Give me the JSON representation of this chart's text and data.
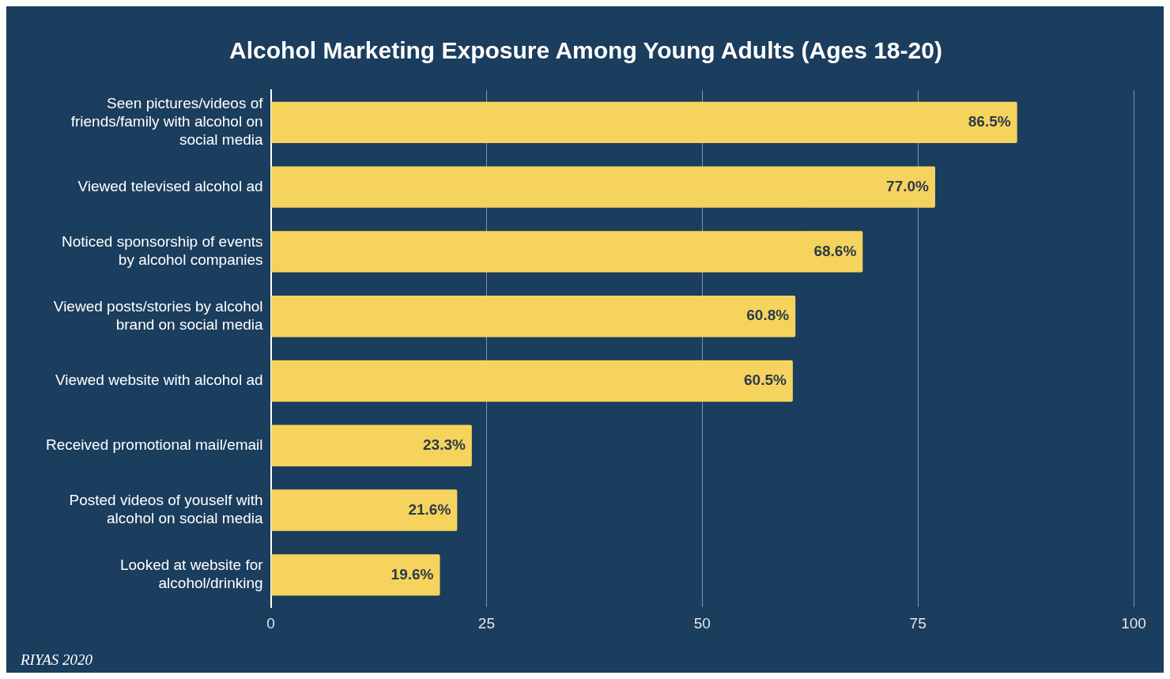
{
  "chart_data": {
    "type": "bar",
    "orientation": "horizontal",
    "title": "Alcohol Marketing Exposure Among Young Adults (Ages 18-20)",
    "categories": [
      "Seen pictures/videos of friends/family with alcohol on social media",
      "Viewed televised alcohol ad",
      "Noticed sponsorship of events by alcohol companies",
      "Viewed posts/stories by alcohol brand on social media",
      "Viewed website with alcohol ad",
      "Received promotional mail/email",
      "Posted videos of youself with alcohol on social media",
      "Looked at website for alcohol/drinking"
    ],
    "values": [
      86.5,
      77.0,
      68.6,
      60.8,
      60.5,
      23.3,
      21.6,
      19.6
    ],
    "value_labels": [
      "86.5%",
      "77.0%",
      "68.6%",
      "60.8%",
      "60.5%",
      "23.3%",
      "21.6%",
      "19.6%"
    ],
    "color": "#f5d35c",
    "xlim": [
      0,
      100
    ],
    "xticks": [
      0,
      25,
      50,
      75,
      100
    ],
    "grid": "x",
    "legend": false,
    "annotations": [
      "RIYAS 2020"
    ]
  }
}
